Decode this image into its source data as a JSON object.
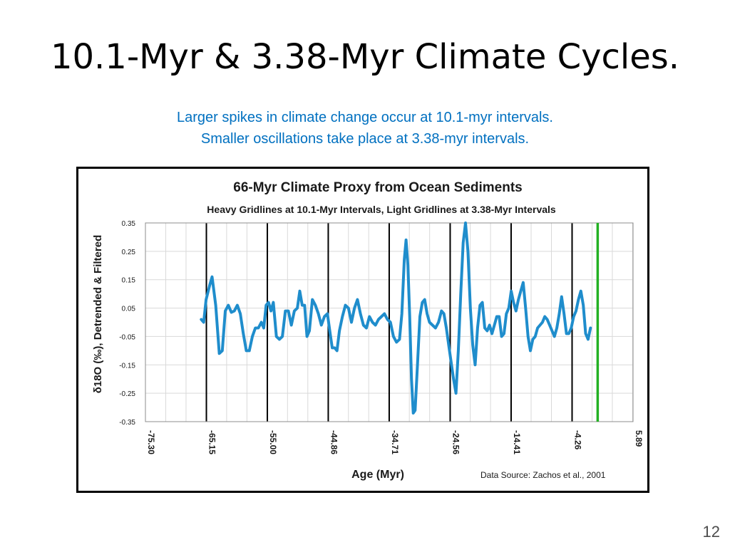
{
  "slide": {
    "title": "10.1-Myr & 3.38-Myr Climate Cycles.",
    "subtitle_line1": "Larger spikes in climate change occur at 10.1-myr intervals.",
    "subtitle_line2": "Smaller oscillations take place at 3.38-myr intervals.",
    "page_number": "12"
  },
  "colors": {
    "subtitle": "#0070c0",
    "series": "#1f8dcc",
    "highlight_line": "#22b022",
    "heavy_grid": "#000000",
    "light_grid": "#d9d9d9"
  },
  "chart_data": {
    "type": "line",
    "title": "66-Myr Climate Proxy from Ocean Sediments",
    "subtitle": "Heavy Gridlines at 10.1-Myr Intervals, Light Gridlines at 3.38-Myr Intervals",
    "xlabel": "Age (Myr)",
    "ylabel": "δ18O (‰), Detrended & Filtered",
    "source_note": "Data Source:  Zachos et al., 2001",
    "xlim": [
      -75.3,
      5.89
    ],
    "ylim": [
      -0.35,
      0.35
    ],
    "x_tick_labels": [
      "-75.30",
      "-65.15",
      "-55.00",
      "-44.86",
      "-34.71",
      "-24.56",
      "-14.41",
      "-4.26",
      "5.89"
    ],
    "x_tick_values": [
      -75.3,
      -65.15,
      -55.0,
      -44.86,
      -34.71,
      -24.56,
      -14.41,
      -4.26,
      5.89
    ],
    "y_tick_labels": [
      "0.35",
      "0.25",
      "0.15",
      "0.05",
      "-0.05",
      "-0.15",
      "-0.25",
      "-0.35"
    ],
    "y_tick_values": [
      0.35,
      0.25,
      0.15,
      0.05,
      -0.05,
      -0.15,
      -0.25,
      -0.35
    ],
    "heavy_gridlines_x": [
      -65.15,
      -55.0,
      -44.86,
      -34.71,
      -24.56,
      -14.41,
      -4.26
    ],
    "light_gridline_step": 3.38,
    "highlight_line_x": 0.0,
    "series": [
      {
        "points": [
          [
            -66.0,
            0.01
          ],
          [
            -65.6,
            0.0
          ],
          [
            -65.2,
            0.08
          ],
          [
            -64.6,
            0.13
          ],
          [
            -64.2,
            0.16
          ],
          [
            -63.6,
            0.06
          ],
          [
            -63.0,
            -0.11
          ],
          [
            -62.5,
            -0.1
          ],
          [
            -62.0,
            0.04
          ],
          [
            -61.5,
            0.06
          ],
          [
            -61.0,
            0.035
          ],
          [
            -60.5,
            0.04
          ],
          [
            -60.0,
            0.06
          ],
          [
            -59.5,
            0.03
          ],
          [
            -59.0,
            -0.04
          ],
          [
            -58.5,
            -0.1
          ],
          [
            -58.0,
            -0.1
          ],
          [
            -57.5,
            -0.05
          ],
          [
            -57.0,
            -0.02
          ],
          [
            -56.5,
            -0.02
          ],
          [
            -56.0,
            0.0
          ],
          [
            -55.6,
            -0.02
          ],
          [
            -55.2,
            0.06
          ],
          [
            -54.8,
            0.07
          ],
          [
            -54.4,
            0.04
          ],
          [
            -54.0,
            0.07
          ],
          [
            -53.5,
            -0.05
          ],
          [
            -53.0,
            -0.06
          ],
          [
            -52.5,
            -0.05
          ],
          [
            -52.0,
            0.04
          ],
          [
            -51.5,
            0.04
          ],
          [
            -51.0,
            -0.01
          ],
          [
            -50.5,
            0.04
          ],
          [
            -50.0,
            0.05
          ],
          [
            -49.6,
            0.11
          ],
          [
            -49.2,
            0.06
          ],
          [
            -48.8,
            0.06
          ],
          [
            -48.4,
            -0.05
          ],
          [
            -48.0,
            -0.03
          ],
          [
            -47.5,
            0.08
          ],
          [
            -47.0,
            0.06
          ],
          [
            -46.5,
            0.03
          ],
          [
            -46.0,
            -0.01
          ],
          [
            -45.5,
            0.02
          ],
          [
            -45.0,
            0.03
          ],
          [
            -44.6,
            -0.03
          ],
          [
            -44.2,
            -0.09
          ],
          [
            -43.8,
            -0.09
          ],
          [
            -43.4,
            -0.1
          ],
          [
            -43.0,
            -0.03
          ],
          [
            -42.5,
            0.02
          ],
          [
            -42.0,
            0.06
          ],
          [
            -41.5,
            0.05
          ],
          [
            -41.0,
            0.0
          ],
          [
            -40.5,
            0.05
          ],
          [
            -40.0,
            0.08
          ],
          [
            -39.5,
            0.03
          ],
          [
            -39.0,
            -0.01
          ],
          [
            -38.5,
            -0.02
          ],
          [
            -38.0,
            0.02
          ],
          [
            -37.5,
            0.0
          ],
          [
            -37.0,
            -0.01
          ],
          [
            -36.5,
            0.01
          ],
          [
            -36.0,
            0.02
          ],
          [
            -35.5,
            0.03
          ],
          [
            -35.0,
            0.01
          ],
          [
            -34.5,
            0.0
          ],
          [
            -34.0,
            -0.05
          ],
          [
            -33.5,
            -0.07
          ],
          [
            -33.0,
            -0.06
          ],
          [
            -32.6,
            0.03
          ],
          [
            -32.2,
            0.22
          ],
          [
            -31.9,
            0.29
          ],
          [
            -31.6,
            0.2
          ],
          [
            -31.3,
            0.02
          ],
          [
            -31.0,
            -0.2
          ],
          [
            -30.7,
            -0.32
          ],
          [
            -30.4,
            -0.31
          ],
          [
            -30.0,
            -0.15
          ],
          [
            -29.6,
            0.02
          ],
          [
            -29.2,
            0.07
          ],
          [
            -28.8,
            0.08
          ],
          [
            -28.4,
            0.03
          ],
          [
            -28.0,
            0.0
          ],
          [
            -27.5,
            -0.01
          ],
          [
            -27.0,
            -0.02
          ],
          [
            -26.5,
            0.0
          ],
          [
            -26.0,
            0.04
          ],
          [
            -25.6,
            0.03
          ],
          [
            -25.2,
            -0.02
          ],
          [
            -24.8,
            -0.08
          ],
          [
            -24.4,
            -0.14
          ],
          [
            -24.0,
            -0.2
          ],
          [
            -23.6,
            -0.25
          ],
          [
            -23.2,
            -0.1
          ],
          [
            -22.8,
            0.1
          ],
          [
            -22.4,
            0.28
          ],
          [
            -22.0,
            0.35
          ],
          [
            -21.6,
            0.25
          ],
          [
            -21.2,
            0.05
          ],
          [
            -20.8,
            -0.08
          ],
          [
            -20.4,
            -0.15
          ],
          [
            -20.0,
            -0.02
          ],
          [
            -19.6,
            0.06
          ],
          [
            -19.2,
            0.07
          ],
          [
            -18.8,
            -0.02
          ],
          [
            -18.4,
            -0.03
          ],
          [
            -18.0,
            -0.01
          ],
          [
            -17.6,
            -0.04
          ],
          [
            -17.2,
            -0.01
          ],
          [
            -16.8,
            0.02
          ],
          [
            -16.4,
            0.02
          ],
          [
            -16.0,
            -0.05
          ],
          [
            -15.6,
            -0.04
          ],
          [
            -15.2,
            0.03
          ],
          [
            -14.8,
            0.05
          ],
          [
            -14.4,
            0.11
          ],
          [
            -14.0,
            0.07
          ],
          [
            -13.6,
            0.04
          ],
          [
            -13.2,
            0.08
          ],
          [
            -12.8,
            0.11
          ],
          [
            -12.4,
            0.14
          ],
          [
            -12.0,
            0.05
          ],
          [
            -11.6,
            -0.05
          ],
          [
            -11.2,
            -0.1
          ],
          [
            -10.8,
            -0.06
          ],
          [
            -10.4,
            -0.05
          ],
          [
            -10.0,
            -0.02
          ],
          [
            -9.6,
            -0.01
          ],
          [
            -9.2,
            0.0
          ],
          [
            -8.8,
            0.02
          ],
          [
            -8.4,
            0.01
          ],
          [
            -8.0,
            -0.01
          ],
          [
            -7.6,
            -0.03
          ],
          [
            -7.2,
            -0.05
          ],
          [
            -6.8,
            -0.02
          ],
          [
            -6.4,
            0.03
          ],
          [
            -6.0,
            0.09
          ],
          [
            -5.6,
            0.03
          ],
          [
            -5.2,
            -0.04
          ],
          [
            -4.8,
            -0.04
          ],
          [
            -4.4,
            -0.02
          ],
          [
            -4.0,
            0.02
          ],
          [
            -3.6,
            0.04
          ],
          [
            -3.2,
            0.08
          ],
          [
            -2.8,
            0.11
          ],
          [
            -2.4,
            0.06
          ],
          [
            -2.0,
            -0.04
          ],
          [
            -1.6,
            -0.06
          ],
          [
            -1.2,
            -0.02
          ]
        ]
      }
    ]
  }
}
